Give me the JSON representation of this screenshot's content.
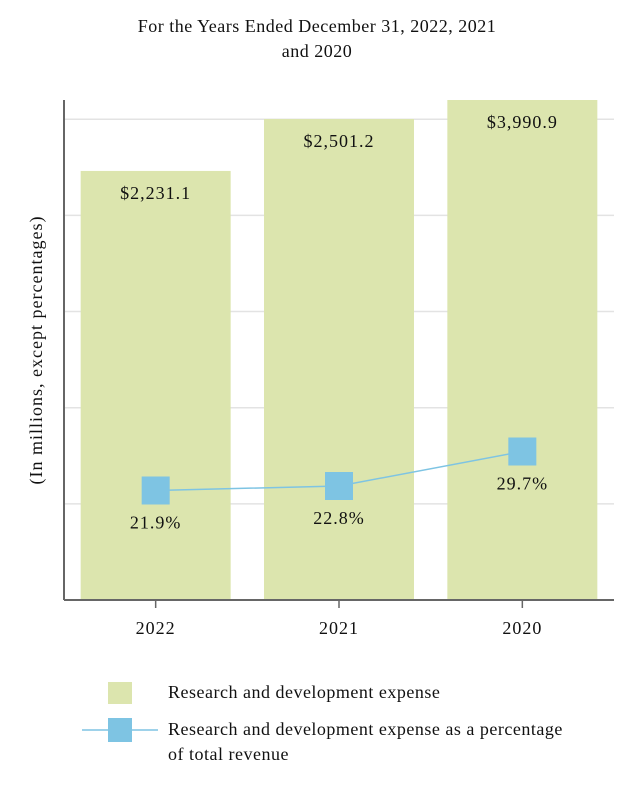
{
  "chart_data": {
    "type": "bar",
    "title": "For the Years Ended December 31, 2022, 2021 and 2020",
    "y_label": "(In millions, except percentages)",
    "categories": [
      "2022",
      "2021",
      "2020"
    ],
    "series": [
      {
        "name": "Research and development expense",
        "type": "bar",
        "color": "#dce5ae",
        "values": [
          2231.1,
          2501.2,
          3990.9
        ],
        "value_labels": [
          "$2,231.1",
          "$2,501.2",
          "$3,990.9"
        ]
      },
      {
        "name": "Research and development expense as a percentage of total revenue",
        "type": "line",
        "axis": "y2",
        "color": "#7ec4e3",
        "values": [
          21.9,
          22.8,
          29.7
        ],
        "value_labels": [
          "21.9%",
          "22.8%",
          "29.7%"
        ]
      }
    ],
    "ylim": [
      0,
      2600
    ],
    "yticks": [
      0,
      500,
      1000,
      1500,
      2000,
      2500
    ],
    "y2lim": [
      0,
      100
    ],
    "grid": true
  }
}
